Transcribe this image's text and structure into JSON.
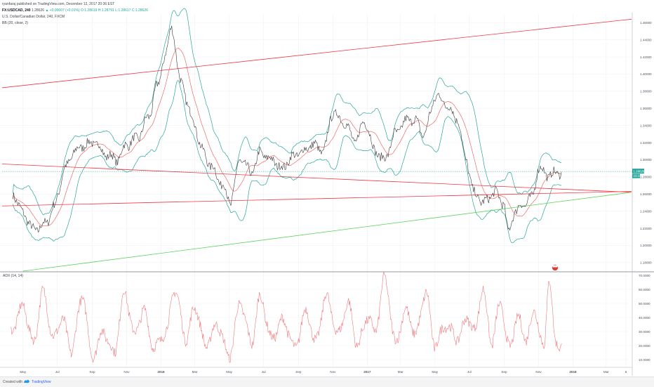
{
  "header": {
    "publisher_line": "ryanfaraj published on TradingView.com, December 12, 2017 20:36 EST",
    "symbol": "FX:USDCAD, 240",
    "last": "1.28626",
    "change": "▲ +0.00007 (+0.01%)",
    "ohlc": "O:1.28619 H:1.28791 L:1.28617 C:1.28626",
    "title": "U.S. Dollar/Canadian Dollar, 240, FXCM",
    "indicator_bb": "BB (20, close, 2)",
    "indicator_adx": "ADX (14, 14)"
  },
  "footer": {
    "created_with": "Created with",
    "brand": "TradingView"
  },
  "colors": {
    "price": "#3a3a3a",
    "bb_band": "#26a69a",
    "bb_basis": "#ef5350",
    "trend_red": "#f23645",
    "trend_green": "#5bd35b",
    "adx": "#f07a80",
    "price_tag": "#26a69a"
  },
  "chart_data": [
    {
      "type": "line",
      "title": "U.S. Dollar/Canadian Dollar, 240, FXCM",
      "xlabel": "",
      "ylabel": "",
      "x_ticks": [
        "May",
        "Jul",
        "Sep",
        "Nov",
        "2016",
        "Mar",
        "May",
        "Jul",
        "Sep",
        "Nov",
        "2017",
        "Mar",
        "May",
        "Jul",
        "Sep",
        "Nov",
        "2018",
        "Mar",
        "5"
      ],
      "y_ticks": [
        "1.46000",
        "1.44000",
        "1.42000",
        "1.40000",
        "1.38000",
        "1.36000",
        "1.34000",
        "1.32000",
        "1.30000",
        "1.28000",
        "1.26000",
        "1.24000",
        "1.22000",
        "1.20000",
        "1.18000"
      ],
      "ylim": [
        1.17,
        1.47
      ],
      "last_price_label": "1.28626",
      "last_price_time_label": "23:24",
      "grid": true,
      "series": [
        {
          "name": "",
          "x": [
            "2015-04-13",
            "2015-05-01",
            "2015-05-20",
            "2015-06-10",
            "2015-06-25",
            "2015-07-15",
            "2015-08-01",
            "2015-08-20",
            "2015-09-05",
            "2015-09-28",
            "2015-10-15",
            "2015-11-01",
            "2015-11-20",
            "2015-12-10",
            "2015-12-25",
            "2016-01-10",
            "2016-01-20",
            "2016-02-05",
            "2016-02-25",
            "2016-03-15",
            "2016-04-01",
            "2016-04-20",
            "2016-05-03",
            "2016-05-20",
            "2016-06-10",
            "2016-06-25",
            "2016-07-15",
            "2016-08-03",
            "2016-08-20",
            "2016-09-10",
            "2016-09-25",
            "2016-10-15",
            "2016-11-01",
            "2016-11-20",
            "2016-12-10",
            "2016-12-28",
            "2017-01-15",
            "2017-01-31",
            "2017-02-20",
            "2017-03-10",
            "2017-03-25",
            "2017-04-10",
            "2017-05-05",
            "2017-05-20",
            "2017-06-10",
            "2017-06-25",
            "2017-07-10",
            "2017-07-27",
            "2017-08-15",
            "2017-08-31",
            "2017-09-08",
            "2017-09-20",
            "2017-10-05",
            "2017-10-20",
            "2017-11-01",
            "2017-11-20",
            "2017-12-05",
            "2017-12-12"
          ],
          "y": [
            1.26,
            1.238,
            1.218,
            1.225,
            1.245,
            1.29,
            1.31,
            1.318,
            1.32,
            1.305,
            1.3,
            1.318,
            1.325,
            1.35,
            1.385,
            1.425,
            1.455,
            1.39,
            1.35,
            1.31,
            1.29,
            1.27,
            1.25,
            1.3,
            1.285,
            1.308,
            1.3,
            1.29,
            1.303,
            1.31,
            1.318,
            1.31,
            1.355,
            1.345,
            1.322,
            1.345,
            1.31,
            1.3,
            1.33,
            1.345,
            1.348,
            1.33,
            1.375,
            1.365,
            1.348,
            1.3,
            1.26,
            1.25,
            1.262,
            1.25,
            1.215,
            1.24,
            1.248,
            1.255,
            1.29,
            1.282,
            1.285,
            1.286
          ]
        }
      ],
      "trend_lines": [
        {
          "name": "",
          "color": "red",
          "points": [
            [
              "2015-03-25",
              1.384
            ],
            [
              "2018-04-15",
              1.464
            ]
          ]
        },
        {
          "name": "",
          "color": "red",
          "points": [
            [
              "2015-03-25",
              1.295
            ],
            [
              "2018-04-15",
              1.262
            ]
          ]
        },
        {
          "name": "",
          "color": "red",
          "points": [
            [
              "2015-03-25",
              1.246
            ],
            [
              "2018-04-15",
              1.263
            ]
          ]
        },
        {
          "name": "",
          "color": "green",
          "points": [
            [
              "2015-05-01",
              1.17
            ],
            [
              "2018-04-15",
              1.262
            ]
          ]
        }
      ]
    },
    {
      "type": "line",
      "title": "ADX (14, 14)",
      "xlabel": "",
      "ylabel": "",
      "y_ticks": [
        "70.0000",
        "60.0000",
        "50.0000",
        "40.0000",
        "30.0000",
        "20.0000",
        "10.0000"
      ],
      "ylim": [
        5,
        72
      ],
      "grid": true,
      "series": [
        {
          "name": "",
          "x": [
            "2015-04-10",
            "2015-05-01",
            "2015-05-20",
            "2015-06-05",
            "2015-06-25",
            "2015-07-10",
            "2015-07-25",
            "2015-08-15",
            "2015-09-01",
            "2015-09-20",
            "2015-10-10",
            "2015-10-28",
            "2015-11-15",
            "2015-12-01",
            "2015-12-20",
            "2016-01-10",
            "2016-01-25",
            "2016-02-15",
            "2016-03-01",
            "2016-03-20",
            "2016-04-10",
            "2016-05-01",
            "2016-05-20",
            "2016-06-10",
            "2016-06-25",
            "2016-07-15",
            "2016-08-05",
            "2016-08-25",
            "2016-09-15",
            "2016-10-01",
            "2016-10-20",
            "2016-11-10",
            "2016-11-28",
            "2016-12-15",
            "2017-01-01",
            "2017-01-15",
            "2017-02-01",
            "2017-02-20",
            "2017-03-10",
            "2017-03-28",
            "2017-04-15",
            "2017-05-01",
            "2017-05-20",
            "2017-06-10",
            "2017-06-28",
            "2017-07-10",
            "2017-07-25",
            "2017-08-10",
            "2017-08-25",
            "2017-09-10",
            "2017-09-25",
            "2017-10-10",
            "2017-10-25",
            "2017-11-10",
            "2017-11-20",
            "2017-12-01",
            "2017-12-12"
          ],
          "y": [
            30,
            48,
            22,
            58,
            25,
            40,
            16,
            55,
            12,
            30,
            15,
            58,
            28,
            45,
            18,
            30,
            60,
            25,
            48,
            20,
            35,
            12,
            50,
            22,
            55,
            25,
            38,
            18,
            45,
            22,
            55,
            28,
            50,
            20,
            40,
            30,
            68,
            22,
            45,
            28,
            58,
            20,
            35,
            25,
            40,
            30,
            60,
            22,
            50,
            18,
            40,
            25,
            45,
            18,
            68,
            22,
            20
          ]
        }
      ]
    }
  ]
}
